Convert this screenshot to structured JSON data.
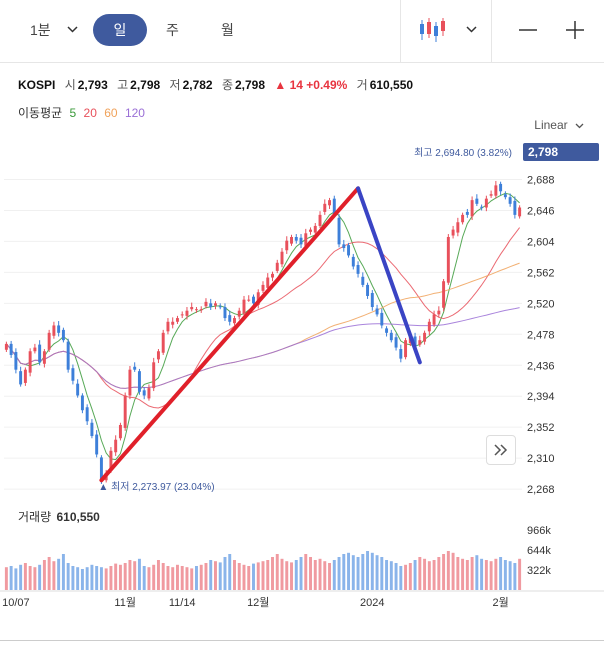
{
  "toolbar": {
    "interval": "1분",
    "tabs": [
      "일",
      "주",
      "월"
    ],
    "active_tab": "일"
  },
  "info": {
    "name": "KOSPI",
    "open_label": "시",
    "open": "2,793",
    "high_label": "고",
    "high": "2,798",
    "low_label": "저",
    "low": "2,782",
    "close_label": "종",
    "close": "2,798",
    "change": "▲ 14 +0.49%",
    "volume_label": "거",
    "volume": "610,550"
  },
  "moving_average": {
    "label": "이동평균",
    "periods": [
      {
        "value": "5",
        "color": "#3a9a3a"
      },
      {
        "value": "20",
        "color": "#e8505b"
      },
      {
        "value": "60",
        "color": "#f0a25a"
      },
      {
        "value": "120",
        "color": "#9a6fd6"
      }
    ]
  },
  "scale_label": "Linear",
  "volume_header": {
    "label": "거래량",
    "value": "610,550"
  },
  "chart_data": {
    "type": "candlestick",
    "y_ticks": [
      "2,688",
      "2,646",
      "2,604",
      "2,562",
      "2,520",
      "2,478",
      "2,436",
      "2,394",
      "2,352",
      "2,310",
      "2,268"
    ],
    "y_tick_values": [
      2688,
      2646,
      2604,
      2562,
      2520,
      2478,
      2436,
      2394,
      2352,
      2310,
      2268
    ],
    "ylim": [
      2260,
      2728
    ],
    "current_price_label": "2,798",
    "x_ticks": [
      "10/07",
      "11월",
      "11/14",
      "12월",
      "2024",
      "2월"
    ],
    "x_tick_index": [
      2,
      25,
      37,
      53,
      77,
      104
    ],
    "high_annotation": "최고 2,694.80 (3.82%)",
    "low_annotation": "▲ 최저 2,273.97 (23.04%)",
    "volume_ticks": [
      "966k",
      "644k",
      "322k"
    ],
    "colors": {
      "up": "#e8505b",
      "down": "#3d7fd9",
      "trend_up": "#e0202a",
      "trend_down": "#3a44c4",
      "ma5": "#3a9a3a",
      "ma20": "#e8505b",
      "ma60": "#f0a25a",
      "ma120": "#9a6fd6"
    },
    "close": [
      2465,
      2450,
      2430,
      2410,
      2430,
      2455,
      2460,
      2440,
      2455,
      2480,
      2490,
      2480,
      2470,
      2430,
      2415,
      2395,
      2375,
      2360,
      2340,
      2315,
      2280,
      2290,
      2320,
      2335,
      2355,
      2395,
      2430,
      2430,
      2400,
      2395,
      2405,
      2440,
      2455,
      2480,
      2495,
      2495,
      2500,
      2505,
      2510,
      2515,
      2512,
      2512,
      2522,
      2515,
      2520,
      2515,
      2500,
      2495,
      2500,
      2510,
      2525,
      2525,
      2520,
      2535,
      2545,
      2555,
      2560,
      2575,
      2590,
      2605,
      2610,
      2605,
      2600,
      2615,
      2620,
      2625,
      2640,
      2655,
      2660,
      2640,
      2600,
      2595,
      2585,
      2570,
      2560,
      2545,
      2530,
      2515,
      2505,
      2490,
      2480,
      2470,
      2460,
      2445,
      2470,
      2475,
      2460,
      2470,
      2480,
      2495,
      2505,
      2510,
      2550,
      2610,
      2620,
      2630,
      2640,
      2640,
      2660,
      2655,
      2650,
      2662,
      2668,
      2680,
      2672,
      2664,
      2655,
      2640,
      2650
    ],
    "volume_ratio": [
      0.38,
      0.4,
      0.36,
      0.42,
      0.45,
      0.4,
      0.38,
      0.42,
      0.5,
      0.55,
      0.48,
      0.52,
      0.6,
      0.45,
      0.4,
      0.38,
      0.35,
      0.38,
      0.42,
      0.4,
      0.38,
      0.36,
      0.4,
      0.44,
      0.42,
      0.45,
      0.5,
      0.48,
      0.52,
      0.4,
      0.38,
      0.42,
      0.5,
      0.45,
      0.4,
      0.38,
      0.42,
      0.4,
      0.38,
      0.36,
      0.4,
      0.42,
      0.45,
      0.5,
      0.48,
      0.46,
      0.55,
      0.6,
      0.5,
      0.45,
      0.42,
      0.4,
      0.44,
      0.46,
      0.48,
      0.5,
      0.55,
      0.6,
      0.52,
      0.48,
      0.46,
      0.5,
      0.55,
      0.6,
      0.55,
      0.5,
      0.52,
      0.48,
      0.45,
      0.5,
      0.55,
      0.6,
      0.62,
      0.58,
      0.55,
      0.6,
      0.65,
      0.62,
      0.58,
      0.55,
      0.5,
      0.48,
      0.45,
      0.4,
      0.42,
      0.45,
      0.5,
      0.55,
      0.52,
      0.48,
      0.5,
      0.55,
      0.6,
      0.65,
      0.62,
      0.55,
      0.52,
      0.5,
      0.55,
      0.58,
      0.52,
      0.5,
      0.48,
      0.52,
      0.55,
      0.5,
      0.48,
      0.45,
      0.52
    ],
    "trend_lines": [
      {
        "color": "red",
        "from": [
          20,
          2280
        ],
        "to": [
          74,
          2676
        ]
      },
      {
        "color": "blue",
        "from": [
          74,
          2676
        ],
        "to": [
          87,
          2440
        ]
      }
    ]
  }
}
